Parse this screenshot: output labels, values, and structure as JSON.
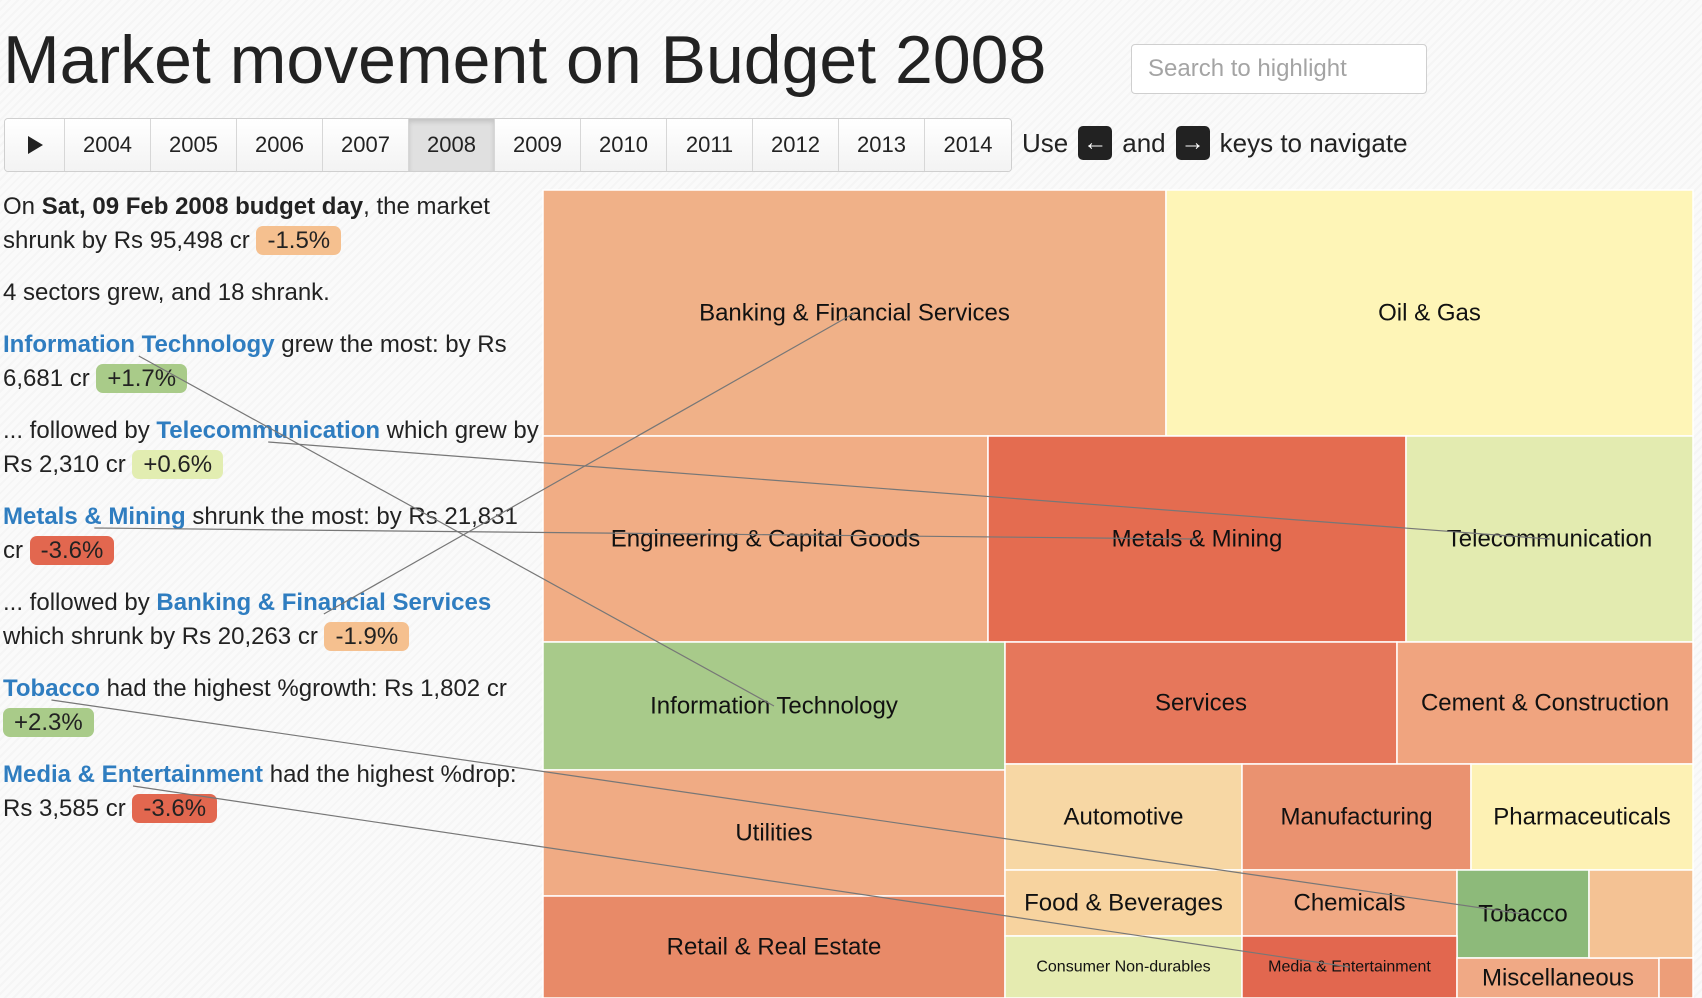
{
  "title": "Market movement on Budget 2008",
  "search": {
    "placeholder": "Search to highlight"
  },
  "years": {
    "play_icon": "play-icon",
    "labels": [
      "2004",
      "2005",
      "2006",
      "2007",
      "2008",
      "2009",
      "2010",
      "2011",
      "2012",
      "2013",
      "2014"
    ],
    "selected": "2008"
  },
  "nav_hint": {
    "use": "Use",
    "and": "and",
    "keys": "keys to navigate",
    "left_key": "←",
    "right_key": "→"
  },
  "summary": {
    "day_prefix": "On ",
    "day": "Sat, 09 Feb 2008 budget day",
    "day_suffix": ", the market shrunk by Rs 95,498 cr ",
    "market_pct": "-1.5%",
    "counts": "4 sectors grew, and 18 shrank.",
    "grew_most_sector": "Information Technology",
    "grew_most_text": " grew the most: by Rs 6,681 cr ",
    "grew_most_pct": "+1.7%",
    "grew_next_prefix": "... followed by ",
    "grew_next_sector": "Telecommunication",
    "grew_next_text": " which grew by Rs 2,310 cr ",
    "grew_next_pct": "+0.6%",
    "shrunk_most_sector": "Metals & Mining",
    "shrunk_most_text": " shrunk the most: by Rs 21,831 cr ",
    "shrunk_most_pct": "-3.6%",
    "shrunk_next_prefix": "... followed by ",
    "shrunk_next_sector": "Banking & Financial Services",
    "shrunk_next_text": " which shrunk by Rs 20,263 cr ",
    "shrunk_next_pct": "-1.9%",
    "pct_growth_sector": "Tobacco",
    "pct_growth_text": " had the highest %growth: Rs 1,802 cr ",
    "pct_growth_pct": "+2.3%",
    "pct_drop_sector": "Media & Entertainment",
    "pct_drop_text": " had the highest %drop: Rs 3,585 cr ",
    "pct_drop_pct": "-3.6%"
  },
  "colors": {
    "link": "#2f7dc0",
    "badge_small_drop": "#f5c08f",
    "badge_large_drop": "#e2674f",
    "badge_growth": "#a9cb89",
    "badge_slight_growth": "#e2edb1"
  },
  "chart_data": {
    "type": "treemap",
    "value_meaning": "market movement on budget day",
    "sectors": [
      {
        "name": "Banking & Financial Services",
        "pct": -1.9,
        "color": "#f0b188"
      },
      {
        "name": "Oil & Gas",
        "color": "#fef5b7"
      },
      {
        "name": "Engineering & Capital Goods",
        "color": "#f1ad85"
      },
      {
        "name": "Metals & Mining",
        "pct": -3.6,
        "color": "#e46c50"
      },
      {
        "name": "Telecommunication",
        "pct": 0.6,
        "color": "#e3ebb0"
      },
      {
        "name": "Information Technology",
        "pct": 1.7,
        "color": "#a8ca8a"
      },
      {
        "name": "Services",
        "color": "#e6775b"
      },
      {
        "name": "Cement & Construction",
        "color": "#f0a47f"
      },
      {
        "name": "Utilities",
        "color": "#f0ab84"
      },
      {
        "name": "Automotive",
        "color": "#f7d7a4"
      },
      {
        "name": "Manufacturing",
        "color": "#ea9270"
      },
      {
        "name": "Pharmaceuticals",
        "color": "#fdf1b4"
      },
      {
        "name": "Retail & Real Estate",
        "color": "#e88a68"
      },
      {
        "name": "Food & Beverages",
        "color": "#f7d39f"
      },
      {
        "name": "Chemicals",
        "color": "#f0a883"
      },
      {
        "name": "Tobacco",
        "pct": 2.3,
        "color": "#8dba7a"
      },
      {
        "name": "Consumer Non-durables",
        "color": "#e5ebb0"
      },
      {
        "name": "Media & Entertainment",
        "pct": -3.6,
        "color": "#e2674f"
      },
      {
        "name": "Miscellaneous",
        "color": "#f0a985"
      },
      {
        "name": "",
        "color": "#f4c294"
      },
      {
        "name": "",
        "color": "#ed9e79"
      }
    ]
  }
}
